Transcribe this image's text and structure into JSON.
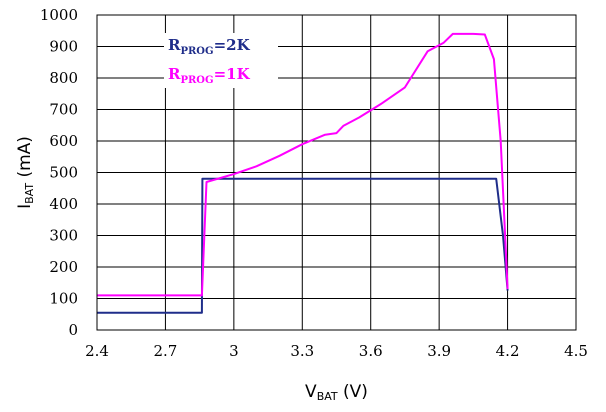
{
  "chart_data": {
    "type": "line",
    "xlabel": {
      "main": "V",
      "sub": "BAT",
      "unit": " (V)"
    },
    "ylabel": {
      "main": "I",
      "sub": "BAT",
      "unit": " (mA)"
    },
    "xlim": [
      2.4,
      4.5
    ],
    "ylim": [
      0,
      1000
    ],
    "x_ticks": [
      "2.4",
      "2.7",
      "3",
      "3.3",
      "3.6",
      "3.9",
      "4.2",
      "4.5"
    ],
    "y_ticks": [
      "0",
      "100",
      "200",
      "300",
      "400",
      "500",
      "600",
      "700",
      "800",
      "900",
      "1000"
    ],
    "grid": true,
    "legend": {
      "position": "top-left"
    },
    "series": [
      {
        "name": {
          "main": "R",
          "sub": "PROG",
          "suffix": "=2K"
        },
        "color": "#1f2d8a",
        "points": [
          [
            2.4,
            55
          ],
          [
            2.86,
            55
          ],
          [
            2.862,
            480
          ],
          [
            3.0,
            480
          ],
          [
            3.5,
            480
          ],
          [
            4.0,
            480
          ],
          [
            4.15,
            480
          ],
          [
            4.18,
            300
          ],
          [
            4.2,
            125
          ]
        ]
      },
      {
        "name": {
          "main": "R",
          "sub": "PROG",
          "suffix": "=1K"
        },
        "color": "#ff00ff",
        "points": [
          [
            2.4,
            110
          ],
          [
            2.86,
            110
          ],
          [
            2.88,
            470
          ],
          [
            3.0,
            495
          ],
          [
            3.1,
            520
          ],
          [
            3.2,
            553
          ],
          [
            3.3,
            590
          ],
          [
            3.4,
            620
          ],
          [
            3.45,
            625
          ],
          [
            3.48,
            648
          ],
          [
            3.55,
            675
          ],
          [
            3.65,
            720
          ],
          [
            3.75,
            770
          ],
          [
            3.85,
            885
          ],
          [
            3.92,
            912
          ],
          [
            3.96,
            940
          ],
          [
            4.05,
            940
          ],
          [
            4.1,
            938
          ],
          [
            4.14,
            860
          ],
          [
            4.17,
            600
          ],
          [
            4.2,
            130
          ]
        ]
      }
    ]
  }
}
